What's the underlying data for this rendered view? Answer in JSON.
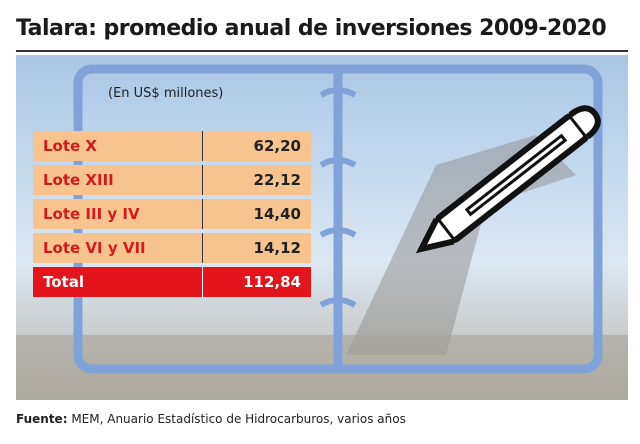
{
  "header": {
    "title": "Talara: promedio anual de inversiones 2009-2020"
  },
  "unit": "(En US$ millones)",
  "table": {
    "rows": [
      [
        "Lote X",
        "62,20"
      ],
      [
        "Lote XIII",
        "22,12"
      ],
      [
        "Lote III y IV",
        "14,40"
      ],
      [
        "Lote VI y VII",
        "14,12"
      ]
    ],
    "total": [
      "Total",
      "112,84"
    ]
  },
  "source": {
    "label": "Fuente:",
    "text": "MEM, Anuario Estadístico de Hidrocarburos, varios años"
  }
}
